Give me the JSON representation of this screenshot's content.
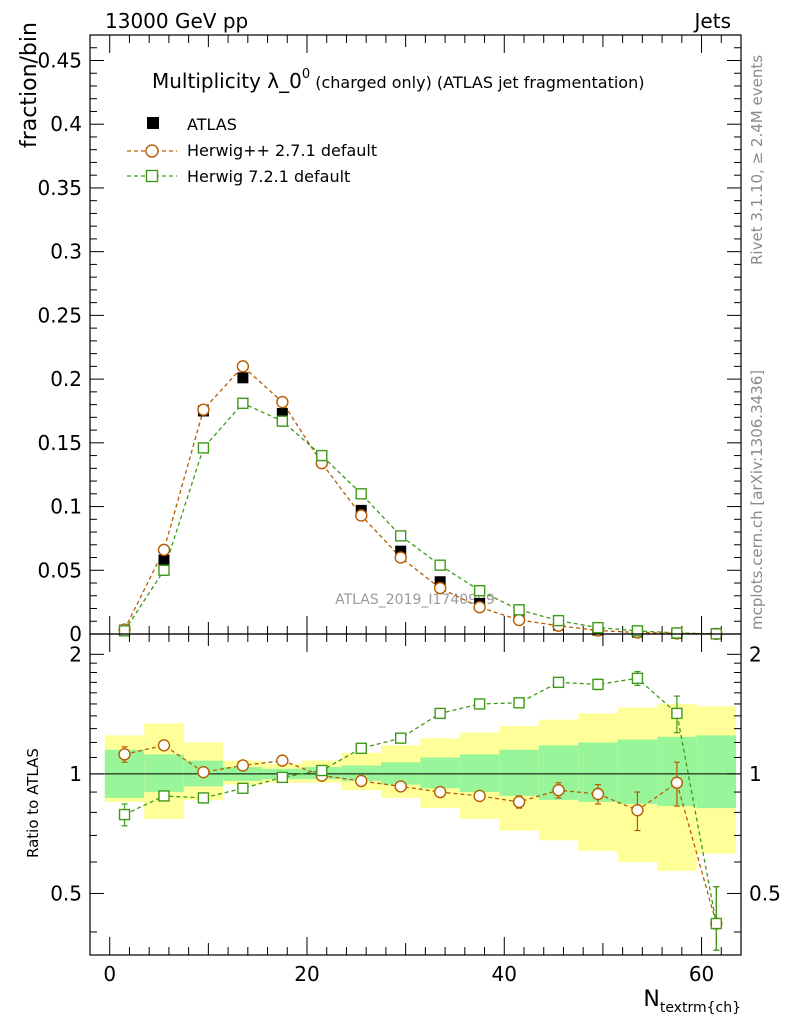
{
  "header": {
    "left": "13000 GeV pp",
    "right": "Jets"
  },
  "side": {
    "rivet": "Rivet 3.1.10, ≥ 2.4M events",
    "mcplots": "mcplots.cern.ch [arXiv:1306.3436]"
  },
  "watermark": "ATLAS_2019_I1740909",
  "colors": {
    "atlas": "#000000",
    "herwigpp": "#b85c00",
    "herwig7": "#3f9a1a",
    "band_inner": "#99f599",
    "band_outer": "#ffff99"
  },
  "chart_data": [
    {
      "type": "line",
      "title_main": "Multiplicity λ_0",
      "title_sup": "0",
      "title_rest": " (charged only) (ATLAS jet fragmentation)",
      "ylabel": "fraction/bin",
      "xlim": [
        -2,
        64
      ],
      "ylim": [
        0,
        0.47
      ],
      "yticks": [
        "0",
        "0.05",
        "0.1",
        "0.15",
        "0.2",
        "0.25",
        "0.3",
        "0.35",
        "0.4",
        "0.45"
      ],
      "ytick_values": [
        0,
        0.05,
        0.1,
        0.15,
        0.2,
        0.25,
        0.3,
        0.35,
        0.4,
        0.45
      ],
      "x": [
        1.5,
        5.5,
        9.5,
        13.5,
        17.5,
        21.5,
        25.5,
        29.5,
        33.5,
        37.5,
        41.5,
        45.5,
        49.5,
        53.5,
        57.5,
        61.5
      ],
      "series": [
        {
          "name": "ATLAS",
          "style": "data",
          "values": [
            0.003,
            0.058,
            0.175,
            0.201,
            0.173,
            0.136,
            0.097,
            0.065,
            0.041,
            0.024,
            0.013,
            0.007,
            0.003,
            0.0015,
            0.0005,
            0.0002
          ]
        },
        {
          "name": "Herwig++ 2.7.1 default",
          "style": "circle",
          "values": [
            0.0035,
            0.066,
            0.176,
            0.21,
            0.182,
            0.134,
            0.093,
            0.06,
            0.036,
            0.021,
            0.011,
            0.0065,
            0.0027,
            0.0012,
            0.0005,
            0.0001
          ]
        },
        {
          "name": "Herwig 7.2.1 default",
          "style": "square",
          "values": [
            0.0025,
            0.05,
            0.146,
            0.181,
            0.167,
            0.14,
            0.11,
            0.077,
            0.054,
            0.034,
            0.019,
            0.0105,
            0.005,
            0.0025,
            0.0008,
            0.0001
          ]
        }
      ]
    },
    {
      "type": "line",
      "ylabel": "Ratio to ATLAS",
      "xlabel_main": "N",
      "xlabel_sub": "textrm{ch}",
      "xlim": [
        -2,
        64
      ],
      "ylim": [
        0.35,
        2.25
      ],
      "yticks": [
        "0.5",
        "1",
        "2"
      ],
      "ytick_values": [
        0.5,
        1,
        2
      ],
      "xticks": [
        "0",
        "20",
        "40",
        "60"
      ],
      "xtick_values": [
        0,
        20,
        40,
        60
      ],
      "x": [
        1.5,
        5.5,
        9.5,
        13.5,
        17.5,
        21.5,
        25.5,
        29.5,
        33.5,
        37.5,
        41.5,
        45.5,
        49.5,
        53.5,
        57.5,
        61.5
      ],
      "bins": [
        [
          -0.5,
          3.5
        ],
        [
          3.5,
          7.5
        ],
        [
          7.5,
          11.5
        ],
        [
          11.5,
          15.5
        ],
        [
          15.5,
          19.5
        ],
        [
          19.5,
          23.5
        ],
        [
          23.5,
          27.5
        ],
        [
          27.5,
          31.5
        ],
        [
          31.5,
          35.5
        ],
        [
          35.5,
          39.5
        ],
        [
          39.5,
          43.5
        ],
        [
          43.5,
          47.5
        ],
        [
          47.5,
          51.5
        ],
        [
          51.5,
          55.5
        ],
        [
          55.5,
          59.5
        ],
        [
          59.5,
          63.5
        ]
      ],
      "band_inner": [
        [
          0.87,
          1.15
        ],
        [
          0.9,
          1.12
        ],
        [
          0.93,
          1.08
        ],
        [
          0.96,
          1.04
        ],
        [
          0.97,
          1.03
        ],
        [
          0.97,
          1.04
        ],
        [
          0.96,
          1.05
        ],
        [
          0.94,
          1.07
        ],
        [
          0.92,
          1.1
        ],
        [
          0.9,
          1.12
        ],
        [
          0.88,
          1.15
        ],
        [
          0.86,
          1.18
        ],
        [
          0.85,
          1.2
        ],
        [
          0.84,
          1.22
        ],
        [
          0.83,
          1.24
        ],
        [
          0.82,
          1.25
        ]
      ],
      "band_outer": [
        [
          0.85,
          1.25
        ],
        [
          0.77,
          1.34
        ],
        [
          0.86,
          1.2
        ],
        [
          0.94,
          1.08
        ],
        [
          0.95,
          1.06
        ],
        [
          0.95,
          1.08
        ],
        [
          0.91,
          1.13
        ],
        [
          0.87,
          1.18
        ],
        [
          0.82,
          1.23
        ],
        [
          0.77,
          1.27
        ],
        [
          0.72,
          1.32
        ],
        [
          0.68,
          1.37
        ],
        [
          0.64,
          1.42
        ],
        [
          0.6,
          1.47
        ],
        [
          0.57,
          1.5
        ],
        [
          0.63,
          1.48
        ]
      ],
      "series": [
        {
          "name": "Herwig++ 2.7.1 default",
          "style": "circle",
          "values": [
            1.12,
            1.18,
            1.01,
            1.05,
            1.08,
            0.99,
            0.96,
            0.93,
            0.9,
            0.88,
            0.85,
            0.91,
            0.89,
            0.81,
            0.95,
            0.42
          ],
          "errors": [
            0.05,
            0.02,
            0.02,
            0.02,
            0.02,
            0.02,
            0.02,
            0.02,
            0.02,
            0.02,
            0.03,
            0.04,
            0.05,
            0.09,
            0.12,
            0.1
          ]
        },
        {
          "name": "Herwig 7.2.1 default",
          "style": "square",
          "values": [
            0.79,
            0.88,
            0.87,
            0.92,
            0.98,
            1.02,
            1.16,
            1.23,
            1.42,
            1.5,
            1.51,
            1.7,
            1.68,
            1.74,
            1.42,
            0.42
          ],
          "errors": [
            0.05,
            0.02,
            0.02,
            0.02,
            0.02,
            0.02,
            0.02,
            0.02,
            0.02,
            0.02,
            0.03,
            0.04,
            0.05,
            0.07,
            0.15,
            0.1
          ]
        }
      ]
    }
  ]
}
